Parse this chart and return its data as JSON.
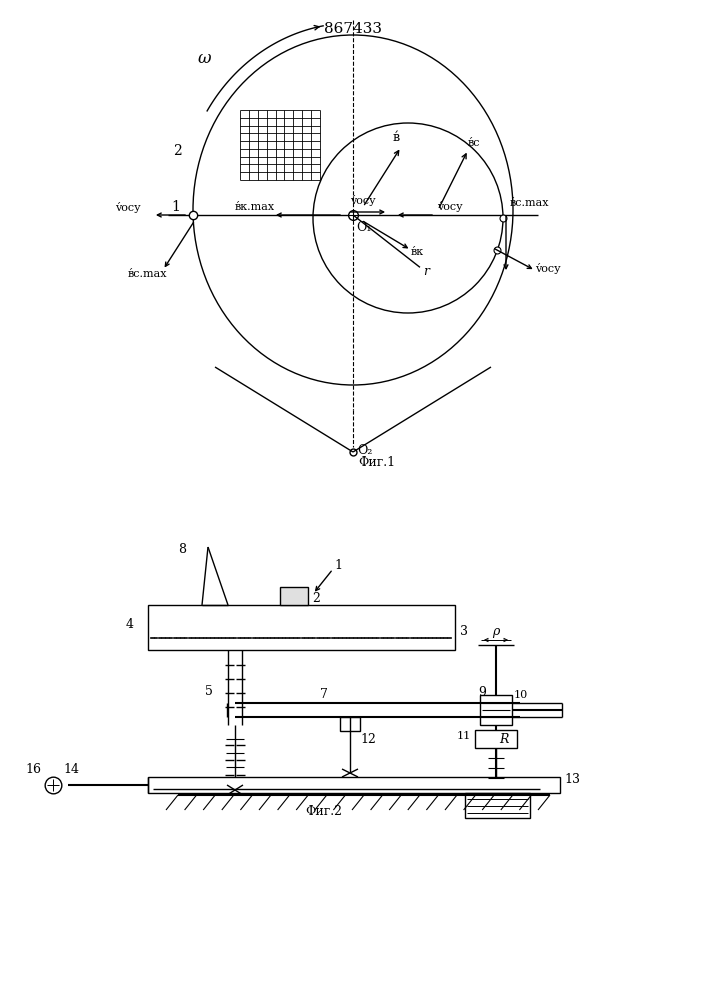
{
  "title": "867433",
  "fig1_label": "Φиг.1",
  "fig2_label": "Φиг.2",
  "bg_color": "#ffffff",
  "line_color": "#000000"
}
